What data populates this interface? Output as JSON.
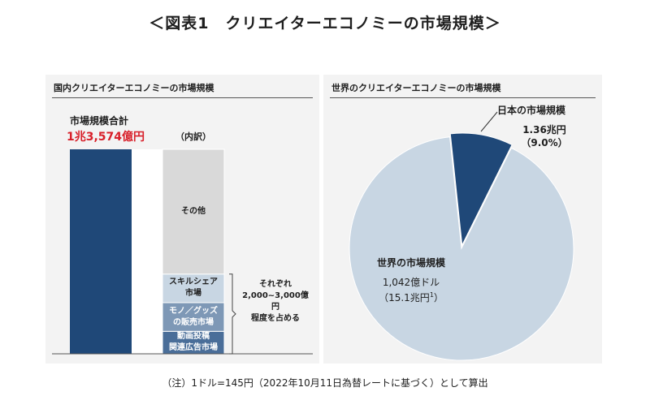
{
  "title": "＜図表1　クリエイターエコノミーの市場規模＞",
  "footnote": "（注）1ドル=145円（2022年10月11日為替レートに基づく）として算出",
  "chart_data": [
    {
      "type": "bar",
      "title": "国内クリエイターエコノミーの市場規模",
      "total_label": "市場規模合計",
      "total_value": "1兆3,574億円",
      "breakdown_label": "（内訳）",
      "bracket_note": [
        "それぞれ",
        "2,000~3,000億円",
        "程度を占める"
      ],
      "segments": [
        {
          "name": [
            "動画投稿",
            "関連広告市場"
          ],
          "share": 0.11,
          "color": "#4a6e99",
          "text_color": "#ffffff"
        },
        {
          "name": [
            "モノ／グッズ",
            "の販売市場"
          ],
          "share": 0.14,
          "color": "#7e98b6",
          "text_color": "#ffffff"
        },
        {
          "name": [
            "スキルシェア",
            "市場"
          ],
          "share": 0.14,
          "color": "#c8d6e3",
          "text_color": "#1e1e1e"
        },
        {
          "name": [
            "その他"
          ],
          "share": 0.61,
          "color": "#d9d9d9",
          "text_color": "#1e1e1e"
        }
      ],
      "total_bar_color": "#1f4878"
    },
    {
      "type": "pie",
      "title": "世界のクリエイターエコノミーの市場規模",
      "slices": [
        {
          "name": "日本の市場規模",
          "value": 9.0,
          "label_value": "1.36兆円",
          "label_pct": "（9.0%）",
          "color": "#1f4878"
        },
        {
          "name": "世界の市場規模",
          "value": 91.0,
          "label_value": "1,042億ドル",
          "label_yen": "（15.1兆円",
          "label_sup": "1",
          "label_close": "）",
          "color": "#c8d6e3"
        }
      ]
    }
  ]
}
